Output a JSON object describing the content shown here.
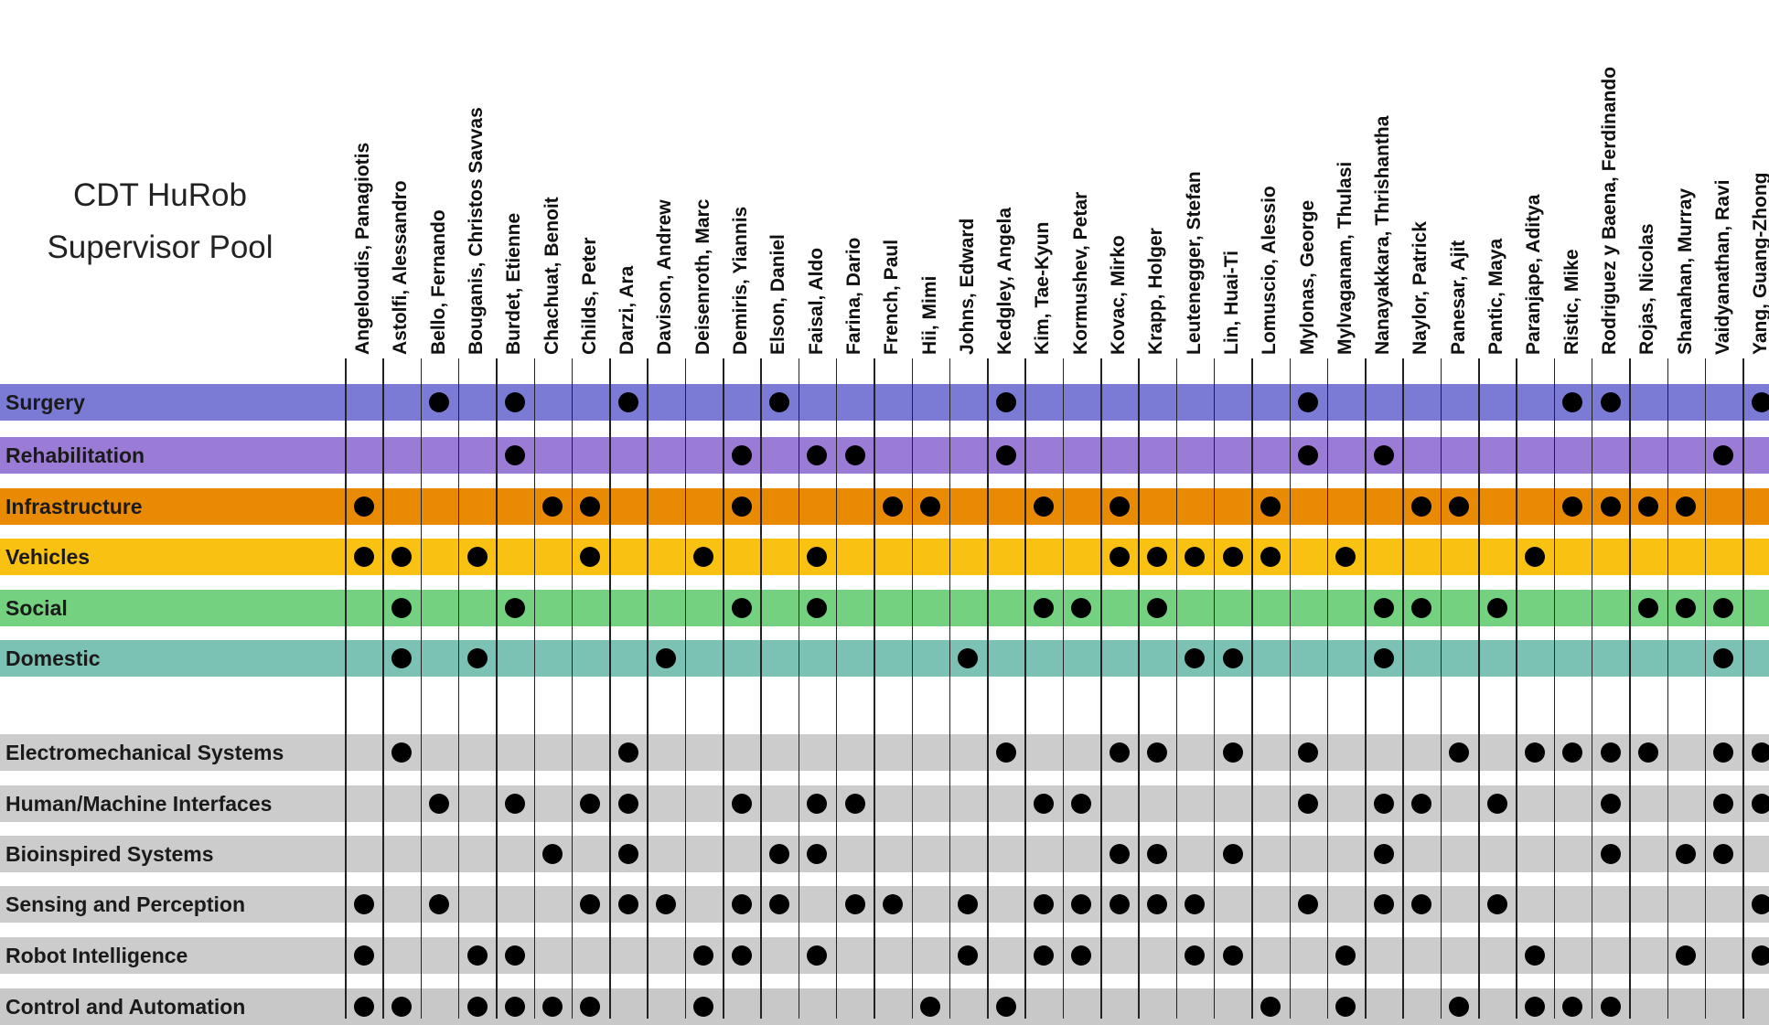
{
  "title_lines": [
    "CDT HuRob",
    "Supervisor Pool"
  ],
  "columns": [
    "Angeloudis, Panagiotis",
    "Astolfi, Alessandro",
    "Bello, Fernando",
    "Bouganis, Christos Savvas",
    "Burdet, Etienne",
    "Chachuat, Benoit",
    "Childs, Peter",
    "Darzi, Ara",
    "Davison, Andrew",
    "Deisenroth, Marc",
    "Demiris, Yiannis",
    "Elson, Daniel",
    "Faisal, Aldo",
    "Farina, Dario",
    "French, Paul",
    "Hii, Mimi",
    "Johns, Edward",
    "Kedgley, Angela",
    "Kim, Tae-Kyun",
    "Kormushev, Petar",
    "Kovac, Mirko",
    "Krapp, Holger",
    "Leutenegger, Stefan",
    "Lin, Huai-Ti",
    "Lomuscio, Alessio",
    "Mylonas, George",
    "Mylvaganam, Thulasi",
    "Nanayakkara, Thrishantha",
    "Naylor, Patrick",
    "Panesar, Ajit",
    "Pantic, Maya",
    "Paranjape, Aditya",
    "Ristic, Mike",
    "Rodriguez y Baena, Ferdinando",
    "Rojas, Nicolas",
    "Shanahan, Murray",
    "Vaidyanathan, Ravi",
    "Yang, Guang-Zhong"
  ],
  "rows": [
    {
      "label": "Surgery",
      "color": "#7b7bd5",
      "members": [
        2,
        4,
        7,
        11,
        17,
        25,
        32,
        33,
        37
      ]
    },
    {
      "label": "Rehabilitation",
      "color": "#9a7bd5",
      "members": [
        4,
        10,
        12,
        13,
        17,
        25,
        27,
        36
      ]
    },
    {
      "label": "Infrastructure",
      "color": "#e88a04",
      "members": [
        0,
        5,
        6,
        10,
        14,
        15,
        18,
        20,
        24,
        28,
        29,
        32,
        33,
        34,
        35
      ]
    },
    {
      "label": "Vehicles",
      "color": "#f9c212",
      "members": [
        0,
        1,
        3,
        6,
        9,
        12,
        20,
        21,
        22,
        23,
        24,
        26,
        31
      ]
    },
    {
      "label": "Social",
      "color": "#74d17f",
      "members": [
        1,
        4,
        10,
        12,
        18,
        19,
        21,
        27,
        28,
        30,
        34,
        35,
        36
      ]
    },
    {
      "label": "Domestic",
      "color": "#7bc1b4",
      "members": [
        1,
        3,
        8,
        16,
        22,
        23,
        27,
        36
      ]
    },
    {
      "label": "Electromechanical Systems",
      "color": "#cccccc",
      "members": [
        1,
        7,
        17,
        20,
        21,
        23,
        25,
        29,
        31,
        32,
        33,
        34,
        36,
        37
      ]
    },
    {
      "label": "Human/Machine Interfaces",
      "color": "#cccccc",
      "members": [
        2,
        4,
        6,
        7,
        10,
        12,
        13,
        18,
        19,
        25,
        27,
        28,
        30,
        33,
        36,
        37
      ]
    },
    {
      "label": "Bioinspired Systems",
      "color": "#cccccc",
      "members": [
        5,
        7,
        11,
        12,
        20,
        21,
        23,
        27,
        33,
        35,
        36
      ]
    },
    {
      "label": "Sensing and Perception",
      "color": "#cccccc",
      "members": [
        0,
        2,
        6,
        7,
        8,
        10,
        11,
        13,
        14,
        16,
        18,
        19,
        20,
        21,
        22,
        25,
        27,
        28,
        30,
        37
      ]
    },
    {
      "label": "Robot Intelligence",
      "color": "#cccccc",
      "members": [
        0,
        3,
        4,
        9,
        10,
        12,
        16,
        18,
        19,
        22,
        23,
        26,
        31,
        35,
        37
      ]
    },
    {
      "label": "Control and Automation",
      "color": "#c8c8c8",
      "members": [
        0,
        1,
        3,
        4,
        5,
        6,
        9,
        15,
        17,
        24,
        26,
        29,
        31,
        32,
        33
      ]
    }
  ]
}
